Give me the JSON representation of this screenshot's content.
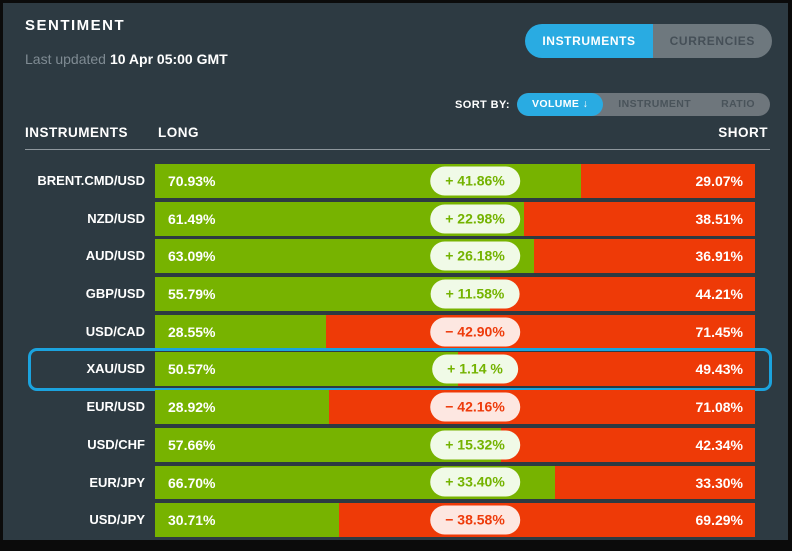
{
  "header": {
    "title": "SENTIMENT",
    "last_updated_label": "Last updated",
    "last_updated_value": "10 Apr 05:00 GMT"
  },
  "tabs": [
    {
      "label": "INSTRUMENTS",
      "active": true
    },
    {
      "label": "CURRENCIES",
      "active": false
    }
  ],
  "sort": {
    "label": "SORT BY:",
    "options": [
      {
        "label": "VOLUME ↓",
        "active": true
      },
      {
        "label": "INSTRUMENT",
        "active": false
      },
      {
        "label": "RATIO",
        "active": false
      }
    ]
  },
  "columns": {
    "instruments": "INSTRUMENTS",
    "long": "LONG",
    "short": "SHORT"
  },
  "colors": {
    "background": "#2d3a42",
    "accent_blue": "#29abe2",
    "long_green": "#77b300",
    "short_red": "#ee3a07",
    "badge_positive_bg": "#f0fae7",
    "badge_negative_bg": "#fde7e1",
    "highlight_border": "#1ba3de"
  },
  "rows": [
    {
      "instrument": "BRENT.CMD/USD",
      "long": "70.93%",
      "long_pct": 70.93,
      "diff": "+ 41.86%",
      "positive": true,
      "short": "29.07%",
      "highlighted": false
    },
    {
      "instrument": "NZD/USD",
      "long": "61.49%",
      "long_pct": 61.49,
      "diff": "+ 22.98%",
      "positive": true,
      "short": "38.51%",
      "highlighted": false
    },
    {
      "instrument": "AUD/USD",
      "long": "63.09%",
      "long_pct": 63.09,
      "diff": "+ 26.18%",
      "positive": true,
      "short": "36.91%",
      "highlighted": false
    },
    {
      "instrument": "GBP/USD",
      "long": "55.79%",
      "long_pct": 55.79,
      "diff": "+ 11.58%",
      "positive": true,
      "short": "44.21%",
      "highlighted": false
    },
    {
      "instrument": "USD/CAD",
      "long": "28.55%",
      "long_pct": 28.55,
      "diff": "− 42.90%",
      "positive": false,
      "short": "71.45%",
      "highlighted": false
    },
    {
      "instrument": "XAU/USD",
      "long": "50.57%",
      "long_pct": 50.57,
      "diff": "+ 1.14 %",
      "positive": true,
      "short": "49.43%",
      "highlighted": true
    },
    {
      "instrument": "EUR/USD",
      "long": "28.92%",
      "long_pct": 28.92,
      "diff": "− 42.16%",
      "positive": false,
      "short": "71.08%",
      "highlighted": false
    },
    {
      "instrument": "USD/CHF",
      "long": "57.66%",
      "long_pct": 57.66,
      "diff": "+ 15.32%",
      "positive": true,
      "short": "42.34%",
      "highlighted": false
    },
    {
      "instrument": "EUR/JPY",
      "long": "66.70%",
      "long_pct": 66.7,
      "diff": "+ 33.40%",
      "positive": true,
      "short": "33.30%",
      "highlighted": false
    },
    {
      "instrument": "USD/JPY",
      "long": "30.71%",
      "long_pct": 30.71,
      "diff": "− 38.58%",
      "positive": false,
      "short": "69.29%",
      "highlighted": false
    }
  ],
  "chart_data": {
    "type": "bar",
    "categories": [
      "BRENT.CMD/USD",
      "NZD/USD",
      "AUD/USD",
      "GBP/USD",
      "USD/CAD",
      "XAU/USD",
      "EUR/USD",
      "USD/CHF",
      "EUR/JPY",
      "USD/JPY"
    ],
    "series": [
      {
        "name": "LONG",
        "values": [
          70.93,
          61.49,
          63.09,
          55.79,
          28.55,
          50.57,
          28.92,
          57.66,
          66.7,
          30.71
        ]
      },
      {
        "name": "SHORT",
        "values": [
          29.07,
          38.51,
          36.91,
          44.21,
          71.45,
          49.43,
          71.08,
          42.34,
          33.3,
          69.29
        ]
      }
    ],
    "net_diff": [
      41.86,
      22.98,
      26.18,
      11.58,
      -42.9,
      1.14,
      -42.16,
      15.32,
      33.4,
      -38.58
    ],
    "title": "SENTIMENT",
    "xlabel": "",
    "ylabel": "",
    "ylim": [
      0,
      100
    ]
  }
}
